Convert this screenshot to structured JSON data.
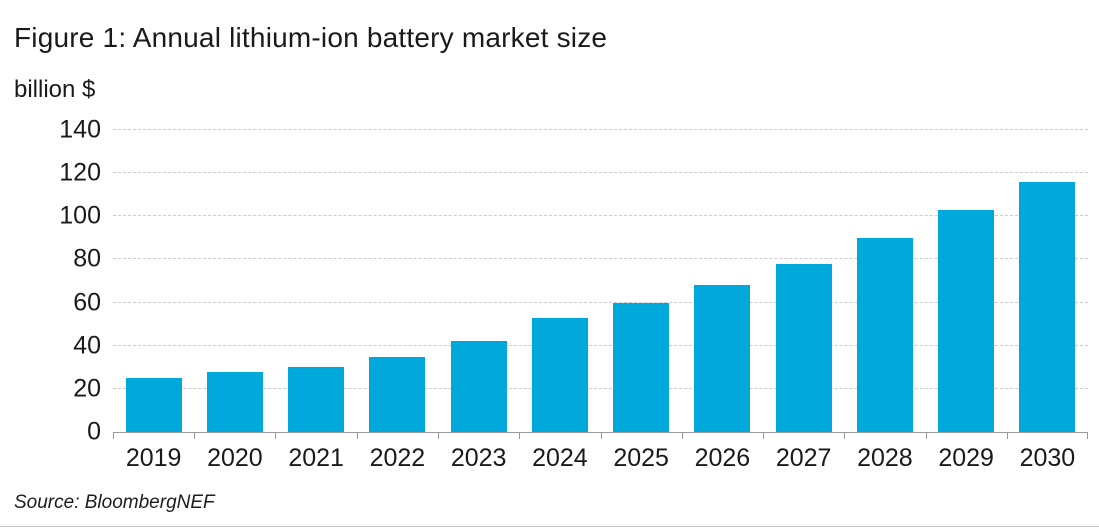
{
  "figure": {
    "title": "Figure 1: Annual lithium-ion battery market size",
    "y_axis_unit_label": "billion $",
    "source": "Source: BloombergNEF"
  },
  "chart_data": {
    "type": "bar",
    "title": "Figure 1: Annual lithium-ion battery market size",
    "xlabel": "",
    "ylabel": "billion $",
    "categories": [
      "2019",
      "2020",
      "2021",
      "2022",
      "2023",
      "2024",
      "2025",
      "2026",
      "2027",
      "2028",
      "2029",
      "2030"
    ],
    "values": [
      25,
      28,
      30,
      35,
      42,
      53,
      60,
      68,
      78,
      90,
      103,
      116
    ],
    "ylim": [
      0,
      140
    ],
    "yticks": [
      0,
      20,
      40,
      60,
      80,
      100,
      120,
      140
    ],
    "grid": "horizontal-dashed",
    "legend": "none",
    "source": "Source: BloombergNEF"
  },
  "colors": {
    "bar": "#00a8dc",
    "grid": "#cbcbcb",
    "axis": "#999999",
    "text": "#1a1a1a",
    "bottom_rule": "#c8c8c8"
  }
}
